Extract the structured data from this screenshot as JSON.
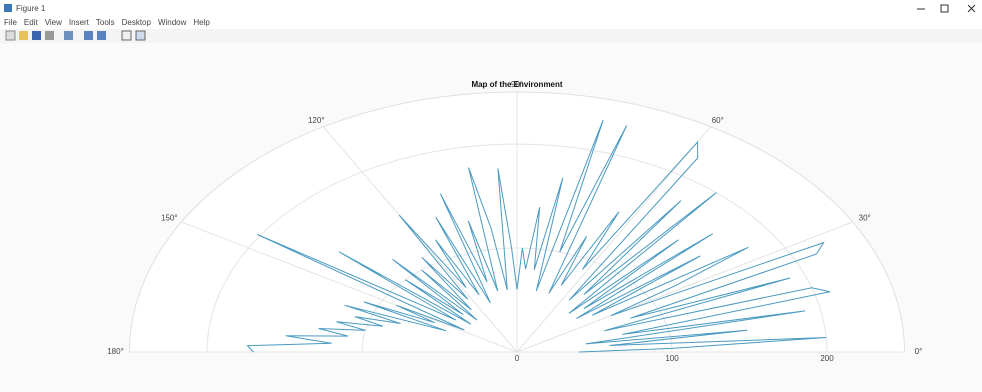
{
  "window": {
    "title": "Figure 1",
    "menu": [
      "File",
      "Edit",
      "View",
      "Insert",
      "Tools",
      "Desktop",
      "Window",
      "Help"
    ]
  },
  "chart_data": {
    "type": "polar",
    "title": "Map of the Environment",
    "theta": [
      0,
      2,
      4,
      6,
      8,
      10,
      12,
      14,
      16,
      18,
      20,
      22,
      24,
      26,
      28,
      30,
      32,
      34,
      36,
      38,
      40,
      42,
      44,
      46,
      48,
      50,
      52,
      54,
      56,
      58,
      60,
      62,
      64,
      66,
      68,
      70,
      72,
      74,
      76,
      78,
      80,
      82,
      84,
      86,
      88,
      90,
      92,
      94,
      96,
      98,
      100,
      102,
      104,
      106,
      108,
      110,
      112,
      114,
      116,
      118,
      120,
      122,
      124,
      126,
      128,
      130,
      132,
      134,
      136,
      138,
      140,
      142,
      144,
      146,
      148,
      150,
      152,
      154,
      156,
      158,
      160,
      162,
      164,
      166,
      168,
      170,
      172,
      174,
      176,
      178,
      180
    ],
    "values": [
      40,
      100,
      200,
      60,
      150,
      45,
      190,
      70,
      210,
      200,
      60,
      190,
      80,
      215,
      224,
      70,
      120,
      180,
      60,
      150,
      50,
      170,
      60,
      150,
      50,
      200,
      70,
      180,
      60,
      220,
      233,
      90,
      150,
      70,
      120,
      60,
      229,
      100,
      230,
      60,
      170,
      80,
      140,
      80,
      100,
      60,
      100,
      177,
      60,
      120,
      180,
      60,
      130,
      70,
      160,
      50,
      140,
      60,
      120,
      70,
      152,
      60,
      110,
      50,
      100,
      40,
      120,
      50,
      100,
      40,
      150,
      50,
      80,
      202,
      40,
      90,
      60,
      110,
      50,
      120,
      80,
      110,
      90,
      120,
      100,
      130,
      110,
      150,
      120,
      174,
      170
    ],
    "color": "#4a9ac1",
    "thetalim": [
      0,
      180
    ],
    "thetaticks": [
      {
        "value": 0,
        "label": "0°"
      },
      {
        "value": 30,
        "label": "30°"
      },
      {
        "value": 60,
        "label": "60°"
      },
      {
        "value": 90,
        "label": "90°"
      },
      {
        "value": 120,
        "label": "120°"
      },
      {
        "value": 150,
        "label": "150°"
      },
      {
        "value": 180,
        "label": "180°"
      }
    ],
    "rlim": [
      0,
      250
    ],
    "rticks": [
      0,
      100,
      200
    ],
    "grid": true
  }
}
